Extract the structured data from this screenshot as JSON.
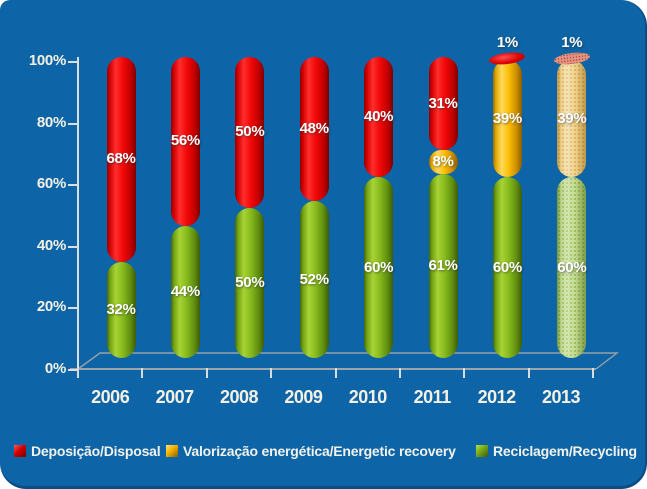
{
  "chart_data": {
    "type": "bar",
    "subtype": "stacked-cylinder-3d",
    "title": "",
    "categories": [
      "2006",
      "2007",
      "2008",
      "2009",
      "2010",
      "2011",
      "2012",
      "2013"
    ],
    "series": [
      {
        "key": "disposal",
        "name": "Deposição/Disposal",
        "color": "#EE0000",
        "values": [
          68,
          56,
          50,
          48,
          40,
          31,
          1,
          1
        ]
      },
      {
        "key": "energetic_recovery",
        "name": "Valorização energética/Energetic recovery",
        "color": "#F5B400",
        "values": [
          0,
          0,
          0,
          0,
          0,
          8,
          39,
          39
        ]
      },
      {
        "key": "recycling",
        "name": "Reciclagem/Recycling",
        "color": "#7DB41C",
        "values": [
          32,
          44,
          50,
          52,
          60,
          61,
          60,
          60
        ]
      }
    ],
    "stack_order_bottom_to_top": [
      "recycling",
      "energetic_recovery",
      "disposal"
    ],
    "projected_categories": [
      "2013"
    ],
    "value_label_suffix": "%",
    "y_axis": {
      "min": 0,
      "max": 100,
      "ticks": [
        "0%",
        "20%",
        "40%",
        "60%",
        "80%",
        "100%"
      ]
    },
    "x_axis": {
      "label": ""
    },
    "legend_position": "bottom",
    "background_color": "#0D64A6",
    "gridlines": false
  }
}
